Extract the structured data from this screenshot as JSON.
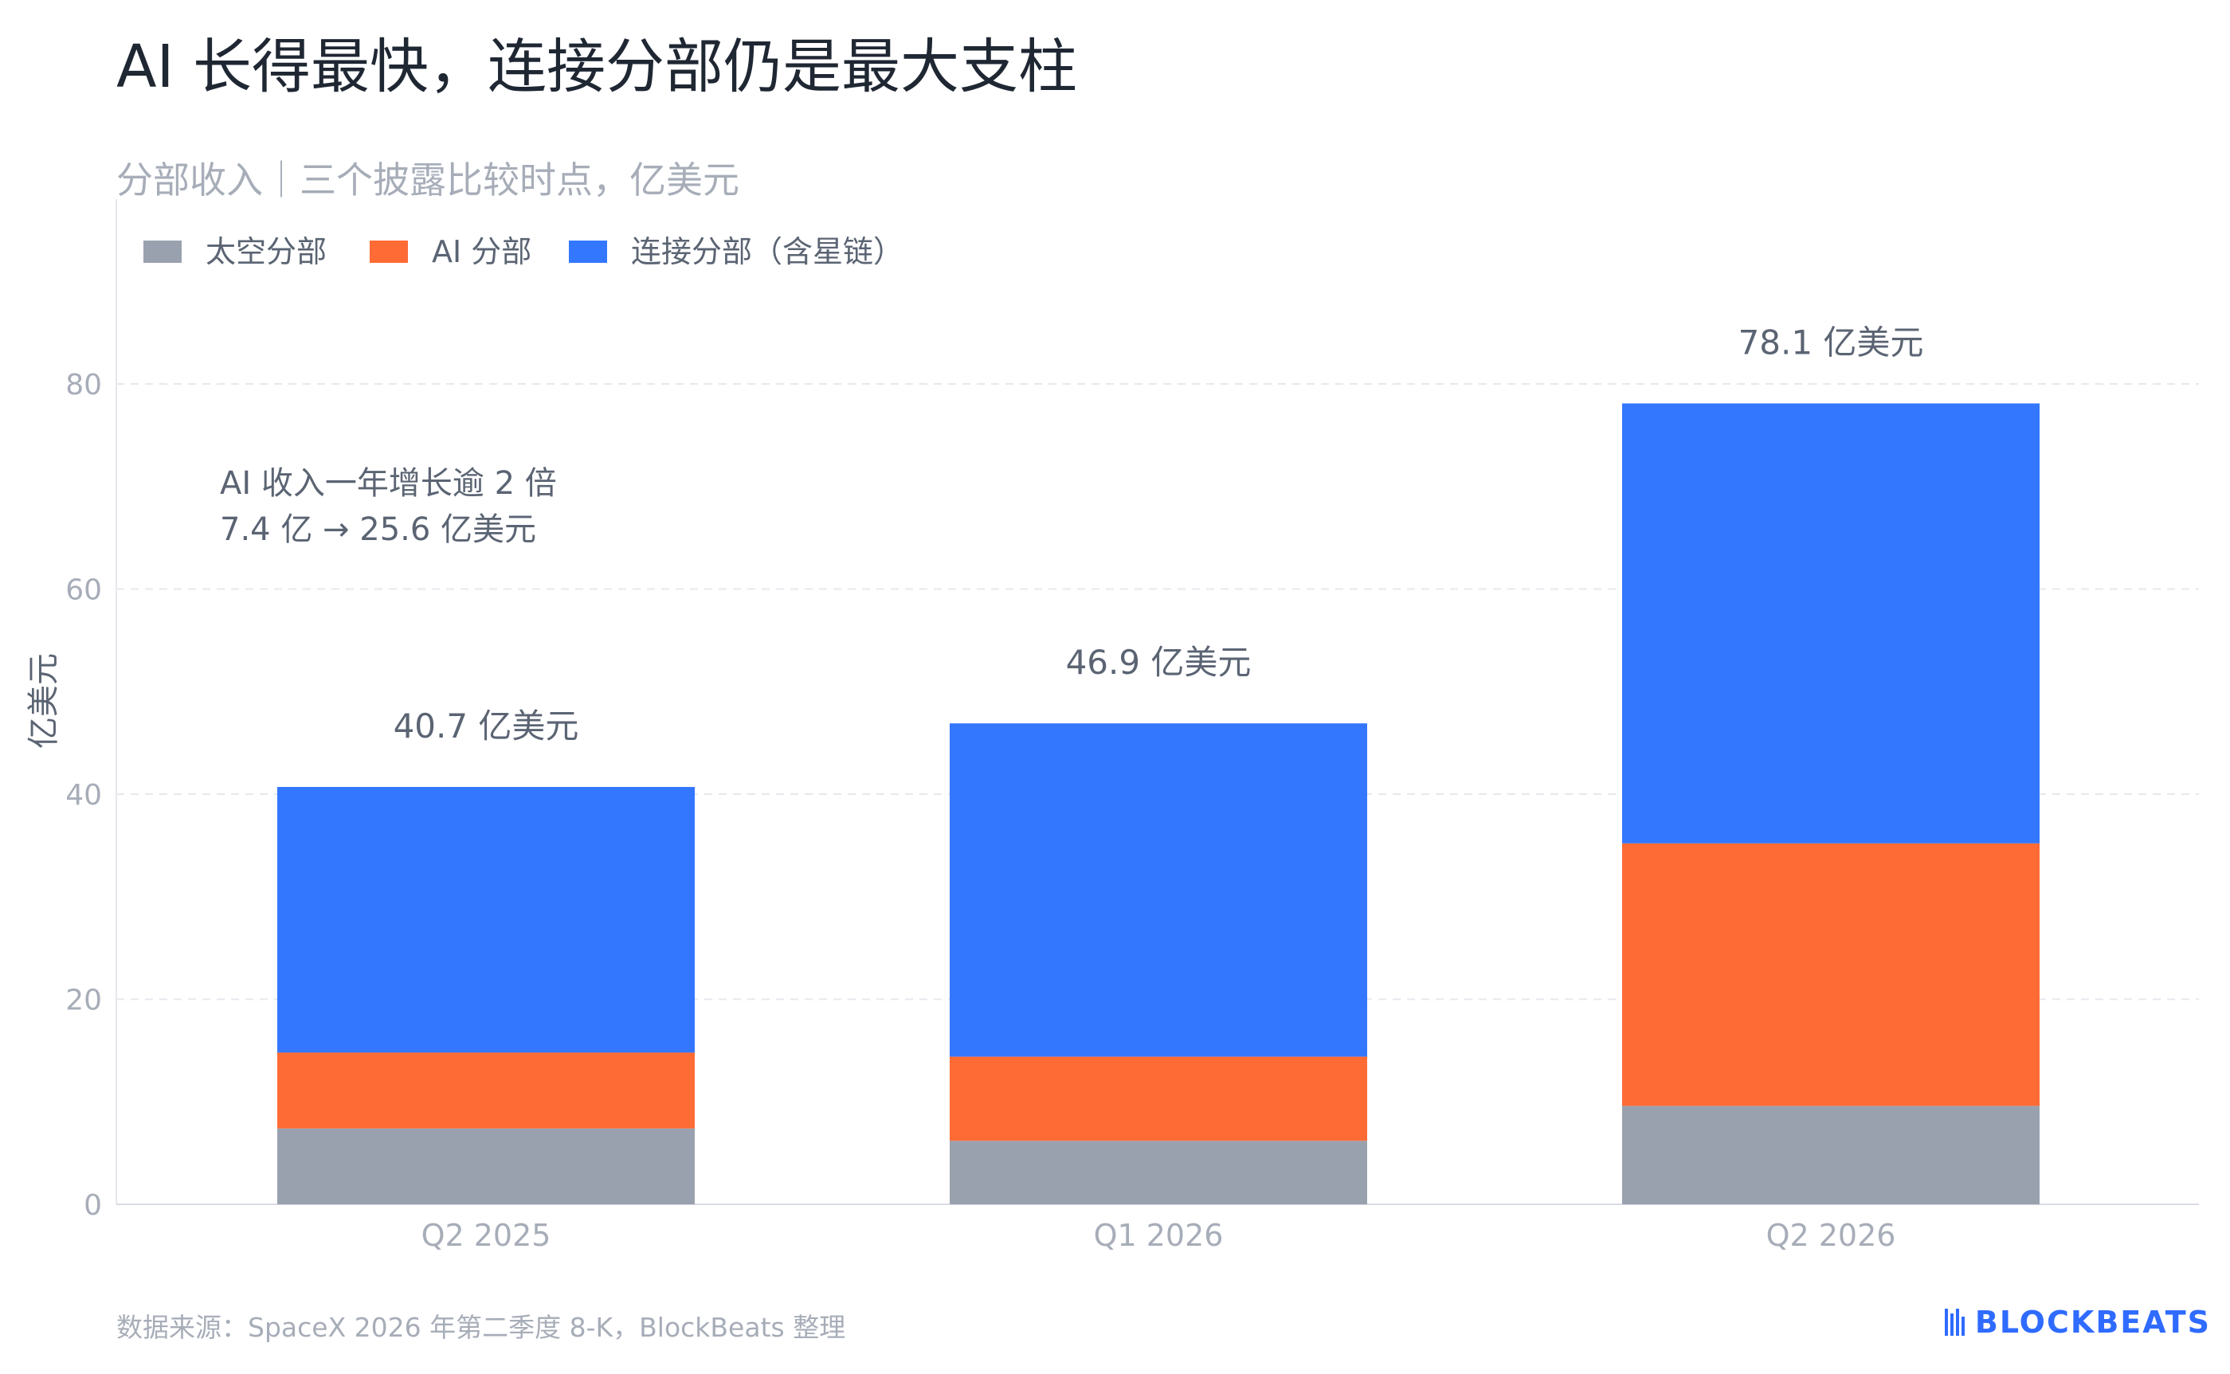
{
  "title": "AI 长得最快，连接分部仍是最大支柱",
  "subtitle": "分部收入｜三个披露比较时点，亿美元",
  "source": "数据来源：SpaceX 2026 年第二季度 8-K，BlockBeats 整理",
  "brand": "BLOCKBEATS",
  "annotation": {
    "line1": "AI 收入一年增长逾 2 倍",
    "line2": "7.4 亿 → 25.6 亿美元"
  },
  "colors": {
    "space": "#9aa1ae",
    "ai": "#ff6b35",
    "connectivity": "#3377ff",
    "grid": "#e6e8ec",
    "axis_text": "#a7adb8",
    "total_label": "#5b6473",
    "brand": "#2f6bff"
  },
  "chart_data": {
    "type": "bar",
    "stacked": true,
    "categories": [
      "Q2 2025",
      "Q1 2026",
      "Q2 2026"
    ],
    "series": [
      {
        "name": "太空分部",
        "values": [
          7.4,
          6.2,
          9.6
        ]
      },
      {
        "name": "AI 分部",
        "values": [
          7.4,
          8.2,
          25.6
        ]
      },
      {
        "name": "连接分部（含星链）",
        "values": [
          25.9,
          32.5,
          42.9
        ]
      }
    ],
    "totals": [
      40.7,
      46.9,
      78.1
    ],
    "total_labels": [
      "40.7 亿美元",
      "46.9 亿美元",
      "78.1 亿美元"
    ],
    "ylabel": "亿美元",
    "ylim": [
      0,
      80
    ],
    "yticks": [
      0,
      20,
      40,
      60,
      80
    ],
    "grid": true,
    "legend_position": "top-left"
  }
}
